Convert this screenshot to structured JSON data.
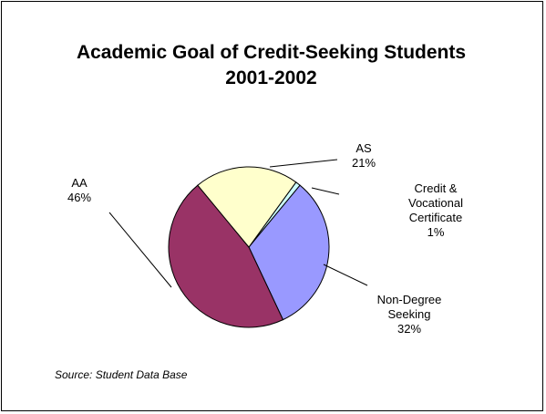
{
  "chart_data": {
    "type": "pie",
    "title_line1": "Academic Goal of Credit-Seeking Students",
    "title_line2": "2001-2002",
    "source": "Source: Student Data Base",
    "start_angle_deg": 36,
    "slices": [
      {
        "label": [
          "Credit &",
          "Vocational",
          "Certificate"
        ],
        "pct": "1%",
        "value": 1,
        "color": "#ccffff"
      },
      {
        "label": [
          "Non-Degree",
          "Seeking"
        ],
        "pct": "32%",
        "value": 32,
        "color": "#9999ff"
      },
      {
        "label": [
          "AA"
        ],
        "pct": "46%",
        "value": 46,
        "color": "#993366"
      },
      {
        "label": [
          "AS"
        ],
        "pct": "21%",
        "value": 21,
        "color": "#ffffcc"
      }
    ]
  }
}
